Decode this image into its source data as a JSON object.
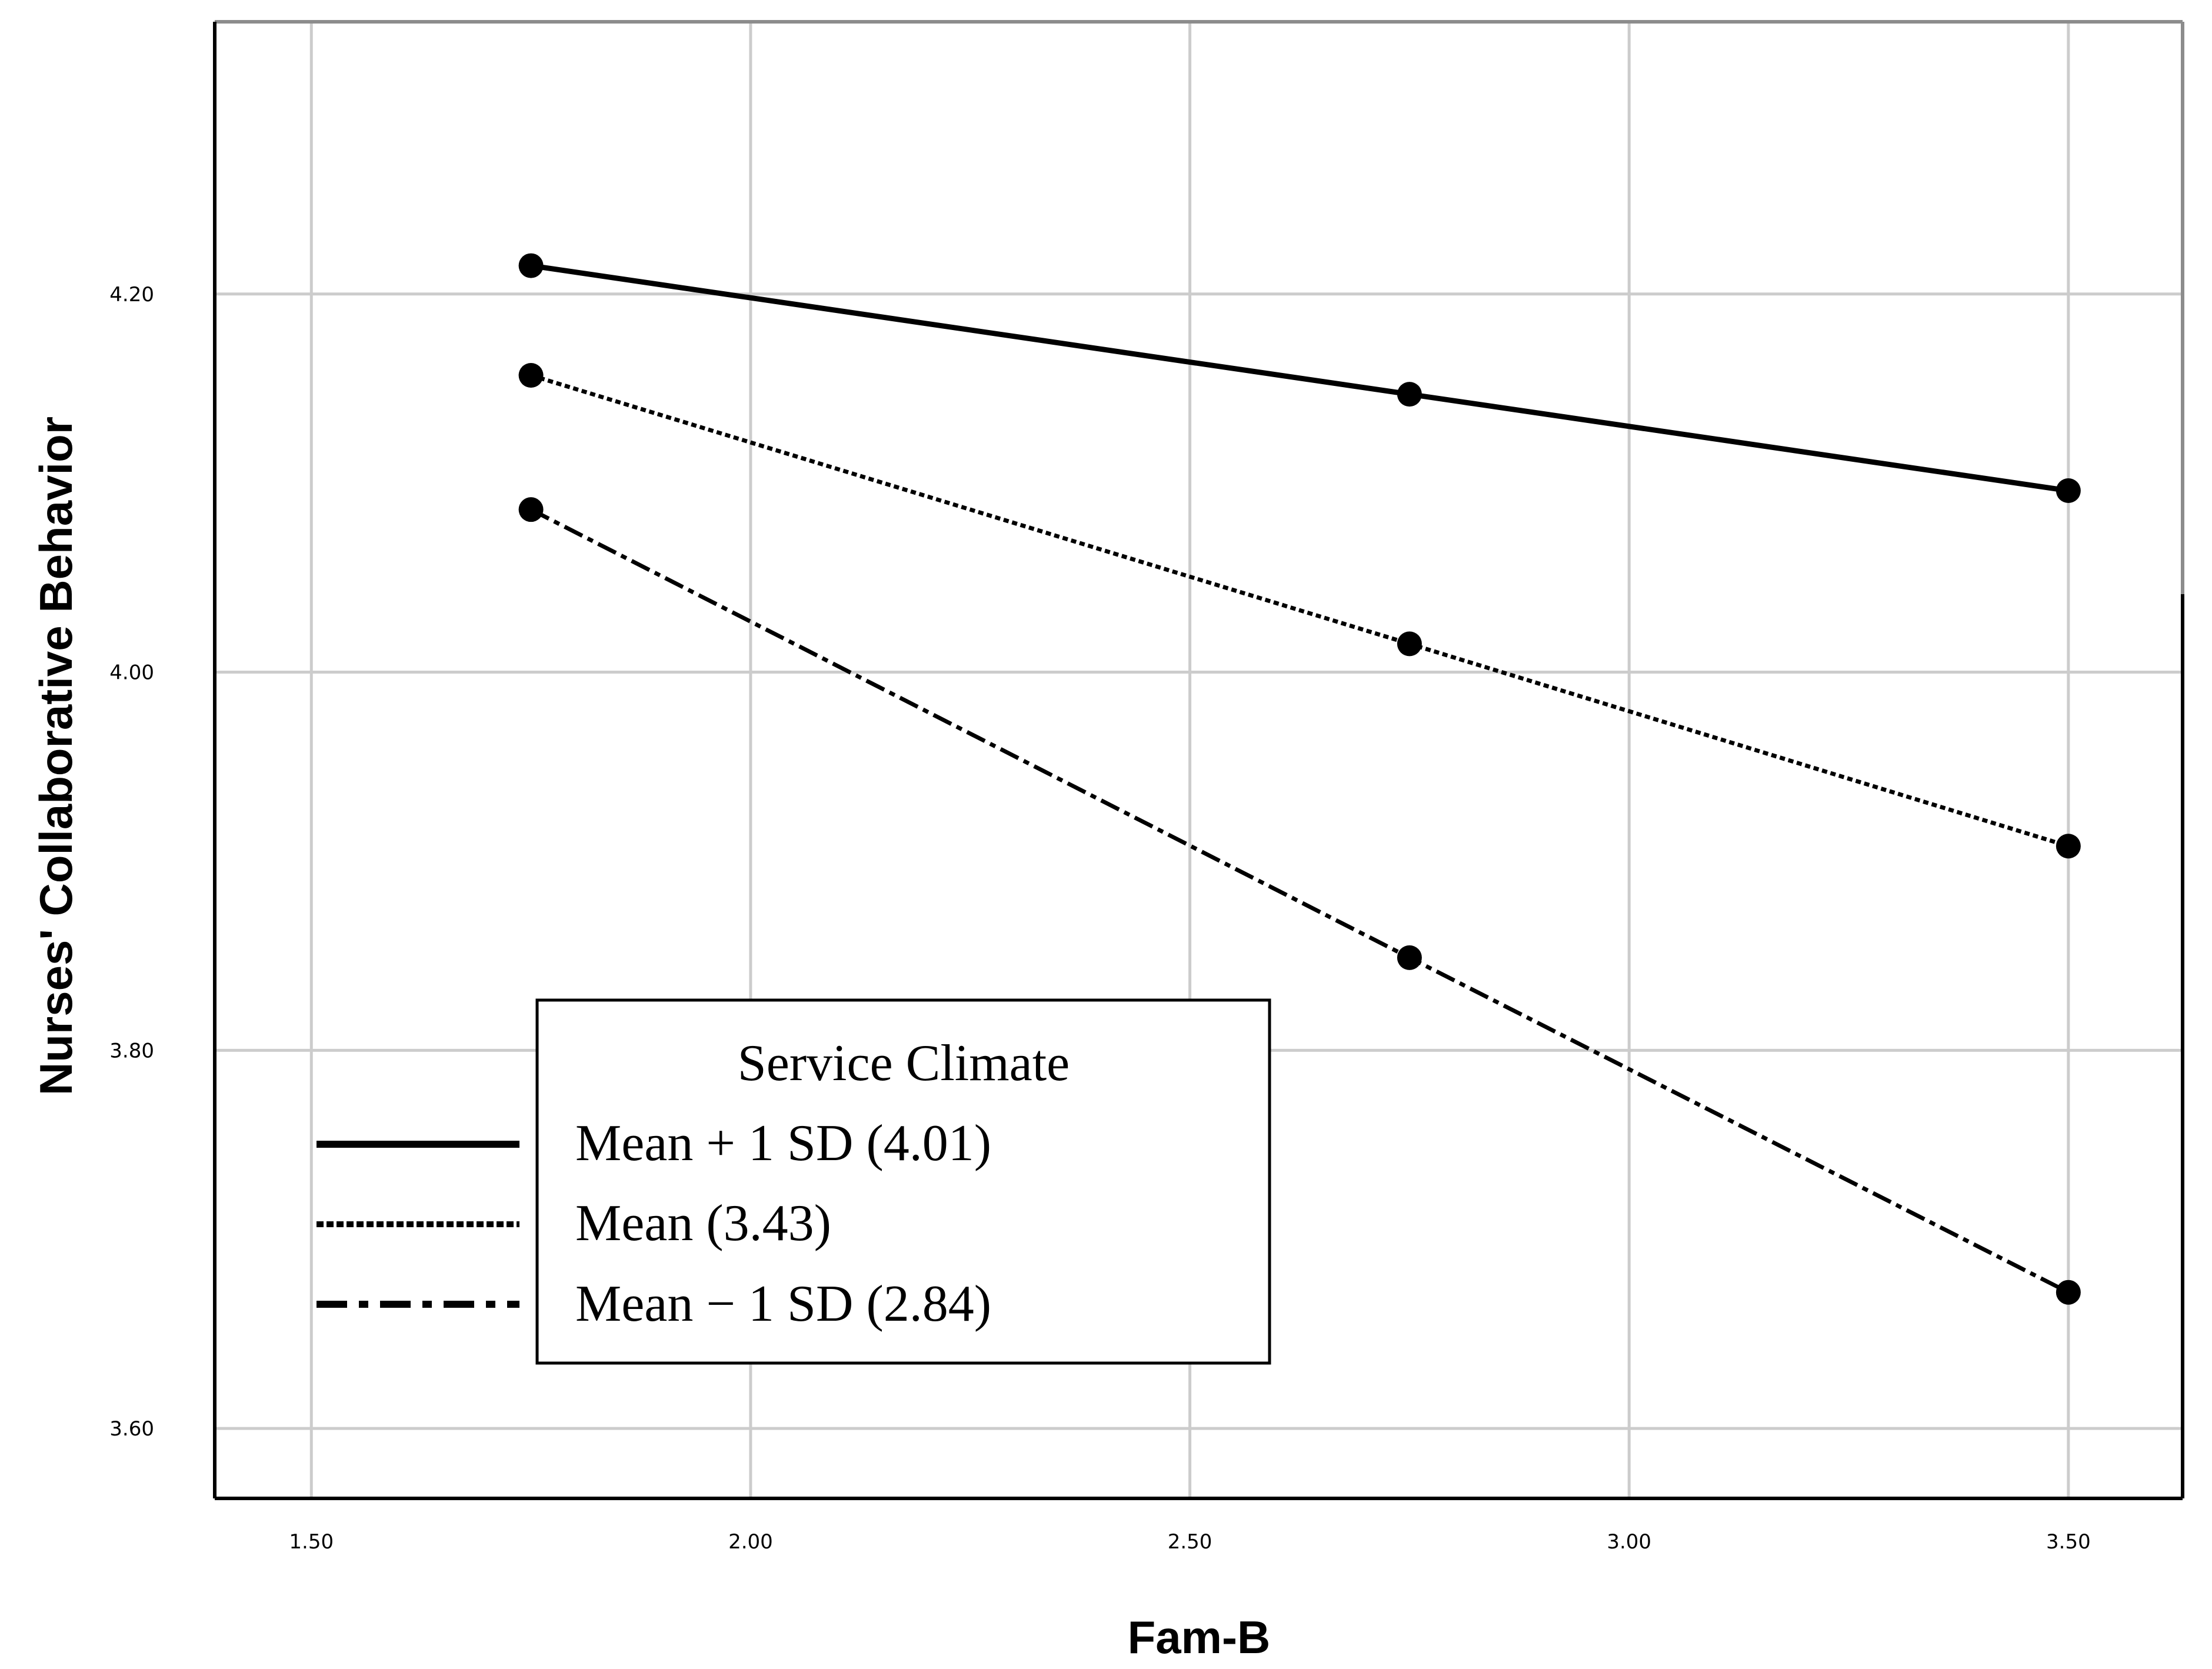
{
  "chart_data": {
    "type": "line",
    "title": "",
    "xlabel": "Fam-B",
    "ylabel": "Nurses' Collaborative Behavior",
    "xlim": [
      1.39,
      3.63
    ],
    "ylim": [
      3.563,
      4.344
    ],
    "x_ticks": [
      1.5,
      2.0,
      2.5,
      3.0,
      3.5
    ],
    "x_tick_labels": [
      "1.50",
      "2.00",
      "2.50",
      "3.00",
      "3.50"
    ],
    "y_ticks": [
      3.6,
      3.8,
      4.0,
      4.2
    ],
    "y_tick_labels": [
      "3.60",
      "3.80",
      "4.00",
      "4.20"
    ],
    "grid": true,
    "x": [
      1.75,
      2.75,
      3.5
    ],
    "series": [
      {
        "name": "Mean + 1 SD (4.01)",
        "style": "solid",
        "values": [
          4.215,
          4.147,
          4.096
        ]
      },
      {
        "name": "Mean (3.43)",
        "style": "dotted",
        "values": [
          4.157,
          4.015,
          3.908
        ]
      },
      {
        "name": "Mean − 1 SD (2.84)",
        "style": "dashdot",
        "values": [
          4.086,
          3.849,
          3.672
        ]
      }
    ],
    "legend": {
      "title": "Service Climate",
      "position": "bottom-left"
    }
  },
  "colors": {
    "line": "#000000",
    "grid": "#cccccc",
    "frame_top_right": "#8c8c8c"
  }
}
